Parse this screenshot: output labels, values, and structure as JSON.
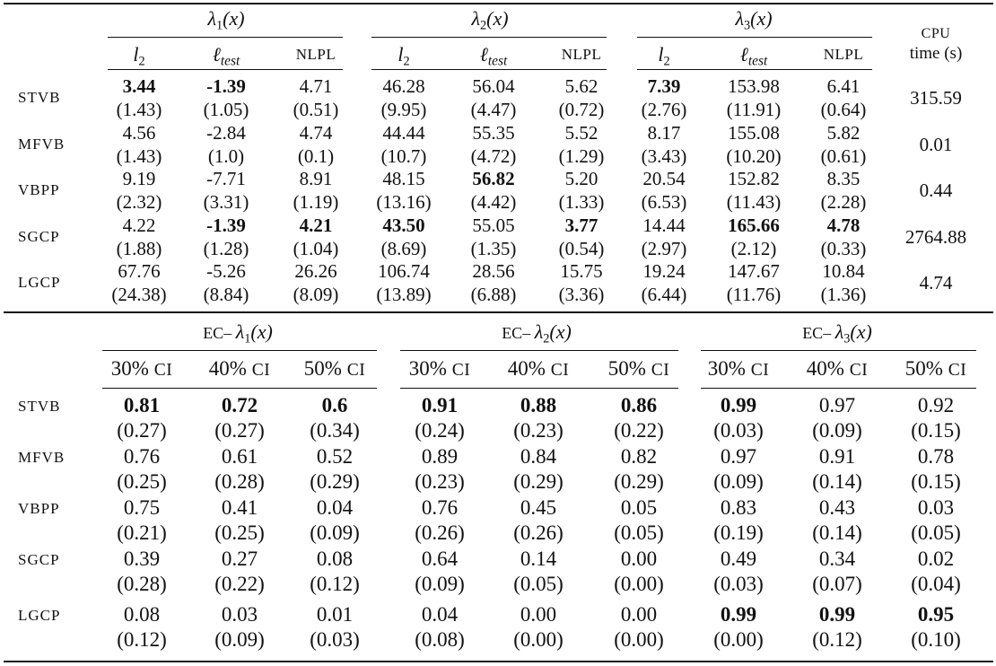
{
  "table1": {
    "groups": [
      {
        "label_prefix": "λ",
        "subscript": "1",
        "label_suffix": "(x)"
      },
      {
        "label_prefix": "λ",
        "subscript": "2",
        "label_suffix": "(x)"
      },
      {
        "label_prefix": "λ",
        "subscript": "3",
        "label_suffix": "(x)"
      }
    ],
    "subheaders": {
      "l2_base": "l",
      "l2_sub": "2",
      "ltest_base": "ℓ",
      "ltest_sub": "test",
      "nlpl": "NLPL"
    },
    "cpu_header": {
      "line1": "CPU",
      "line2": "time (s)"
    },
    "rows": [
      {
        "method": "STVB",
        "values": [
          "3.44",
          "-1.39",
          "4.71",
          "46.28",
          "56.04",
          "5.62",
          "7.39",
          "153.98",
          "6.41"
        ],
        "sds": [
          "(1.43)",
          "(1.05)",
          "(0.51)",
          "(9.95)",
          "(4.47)",
          "(0.72)",
          "(2.76)",
          "(11.91)",
          "(0.64)"
        ],
        "bold": [
          true,
          true,
          false,
          false,
          false,
          false,
          true,
          false,
          false
        ],
        "cpu": "315.59"
      },
      {
        "method": "MFVB",
        "values": [
          "4.56",
          "-2.84",
          "4.74",
          "44.44",
          "55.35",
          "5.52",
          "8.17",
          "155.08",
          "5.82"
        ],
        "sds": [
          "(1.43)",
          "(1.0)",
          "(0.1)",
          "(10.7)",
          "(4.72)",
          "(1.29)",
          "(3.43)",
          "(10.20)",
          "(0.61)"
        ],
        "bold": [
          false,
          false,
          false,
          false,
          false,
          false,
          false,
          false,
          false
        ],
        "cpu": "0.01"
      },
      {
        "method": "VBPP",
        "values": [
          "9.19",
          "-7.71",
          "8.91",
          "48.15",
          "56.82",
          "5.20",
          "20.54",
          "152.82",
          "8.35"
        ],
        "sds": [
          "(2.32)",
          "(3.31)",
          "(1.19)",
          "(13.16)",
          "(4.42)",
          "(1.33)",
          "(6.53)",
          "(11.43)",
          "(2.28)"
        ],
        "bold": [
          false,
          false,
          false,
          false,
          true,
          false,
          false,
          false,
          false
        ],
        "cpu": "0.44"
      },
      {
        "method": "SGCP",
        "values": [
          "4.22",
          "-1.39",
          "4.21",
          "43.50",
          "55.05",
          "3.77",
          "14.44",
          "165.66",
          "4.78"
        ],
        "sds": [
          "(1.88)",
          "(1.28)",
          "(1.04)",
          "(8.69)",
          "(1.35)",
          "(0.54)",
          "(2.97)",
          "(2.12)",
          "(0.33)"
        ],
        "bold": [
          false,
          true,
          true,
          true,
          false,
          true,
          false,
          true,
          true
        ],
        "cpu": "2764.88"
      },
      {
        "method": "LGCP",
        "values": [
          "67.76",
          "-5.26",
          "26.26",
          "106.74",
          "28.56",
          "15.75",
          "19.24",
          "147.67",
          "10.84"
        ],
        "sds": [
          "(24.38)",
          "(8.84)",
          "(8.09)",
          "(13.89)",
          "(6.88)",
          "(3.36)",
          "(6.44)",
          "(11.76)",
          "(1.36)"
        ],
        "bold": [
          false,
          false,
          false,
          false,
          false,
          false,
          false,
          false,
          false
        ],
        "cpu": "4.74"
      }
    ]
  },
  "table2": {
    "groups": [
      {
        "prefix": "EC– ",
        "label_prefix": "λ",
        "subscript": "1",
        "label_suffix": "(x)"
      },
      {
        "prefix": "EC– ",
        "label_prefix": "λ",
        "subscript": "2",
        "label_suffix": "(x)"
      },
      {
        "prefix": "EC– ",
        "label_prefix": "λ",
        "subscript": "3",
        "label_suffix": "(x)"
      }
    ],
    "subheaders": [
      {
        "pct": "30%",
        "ci": "CI"
      },
      {
        "pct": "40%",
        "ci": "CI"
      },
      {
        "pct": "50%",
        "ci": "CI"
      }
    ],
    "rows": [
      {
        "method": "STVB",
        "values": [
          "0.81",
          "0.72",
          "0.6",
          "0.91",
          "0.88",
          "0.86",
          "0.99",
          "0.97",
          "0.92"
        ],
        "sds": [
          "(0.27)",
          "(0.27)",
          "(0.34)",
          "(0.24)",
          "(0.23)",
          "(0.22)",
          "(0.03)",
          "(0.09)",
          "(0.15)"
        ],
        "bold": [
          true,
          true,
          true,
          true,
          true,
          true,
          true,
          false,
          false
        ]
      },
      {
        "method": "MFVB",
        "values": [
          "0.76",
          "0.61",
          "0.52",
          "0.89",
          "0.84",
          "0.82",
          "0.97",
          "0.91",
          "0.78"
        ],
        "sds": [
          "(0.25)",
          "(0.28)",
          "(0.29)",
          "(0.23)",
          "(0.29)",
          "(0.29)",
          "(0.09)",
          "(0.14)",
          "(0.15)"
        ],
        "bold": [
          false,
          false,
          false,
          false,
          false,
          false,
          false,
          false,
          false
        ]
      },
      {
        "method": "VBPP",
        "values": [
          "0.75",
          "0.41",
          "0.04",
          "0.76",
          "0.45",
          "0.05",
          "0.83",
          "0.43",
          "0.03"
        ],
        "sds": [
          "(0.21)",
          "(0.25)",
          "(0.09)",
          "(0.26)",
          "(0.26)",
          "(0.05)",
          "(0.19)",
          "(0.14)",
          "(0.05)"
        ],
        "bold": [
          false,
          false,
          false,
          false,
          false,
          false,
          false,
          false,
          false
        ]
      },
      {
        "method": "SGCP",
        "values": [
          "0.39",
          "0.27",
          "0.08",
          "0.64",
          "0.14",
          "0.00",
          "0.49",
          "0.34",
          "0.02"
        ],
        "sds": [
          "(0.28)",
          "(0.22)",
          "(0.12)",
          "(0.09)",
          "(0.05)",
          "(0.00)",
          "(0.03)",
          "(0.07)",
          "(0.04)"
        ],
        "bold": [
          false,
          false,
          false,
          false,
          false,
          false,
          false,
          false,
          false
        ]
      },
      {
        "method": "LGCP",
        "values": [
          "0.08",
          "0.03",
          "0.01",
          "0.04",
          "0.00",
          "0.00",
          "0.99",
          "0.99",
          "0.95"
        ],
        "sds": [
          "(0.12)",
          "(0.09)",
          "(0.03)",
          "(0.08)",
          "(0.00)",
          "(0.00)",
          "(0.00)",
          "(0.12)",
          "(0.10)"
        ],
        "bold": [
          false,
          false,
          false,
          false,
          false,
          false,
          true,
          true,
          true
        ]
      }
    ]
  }
}
